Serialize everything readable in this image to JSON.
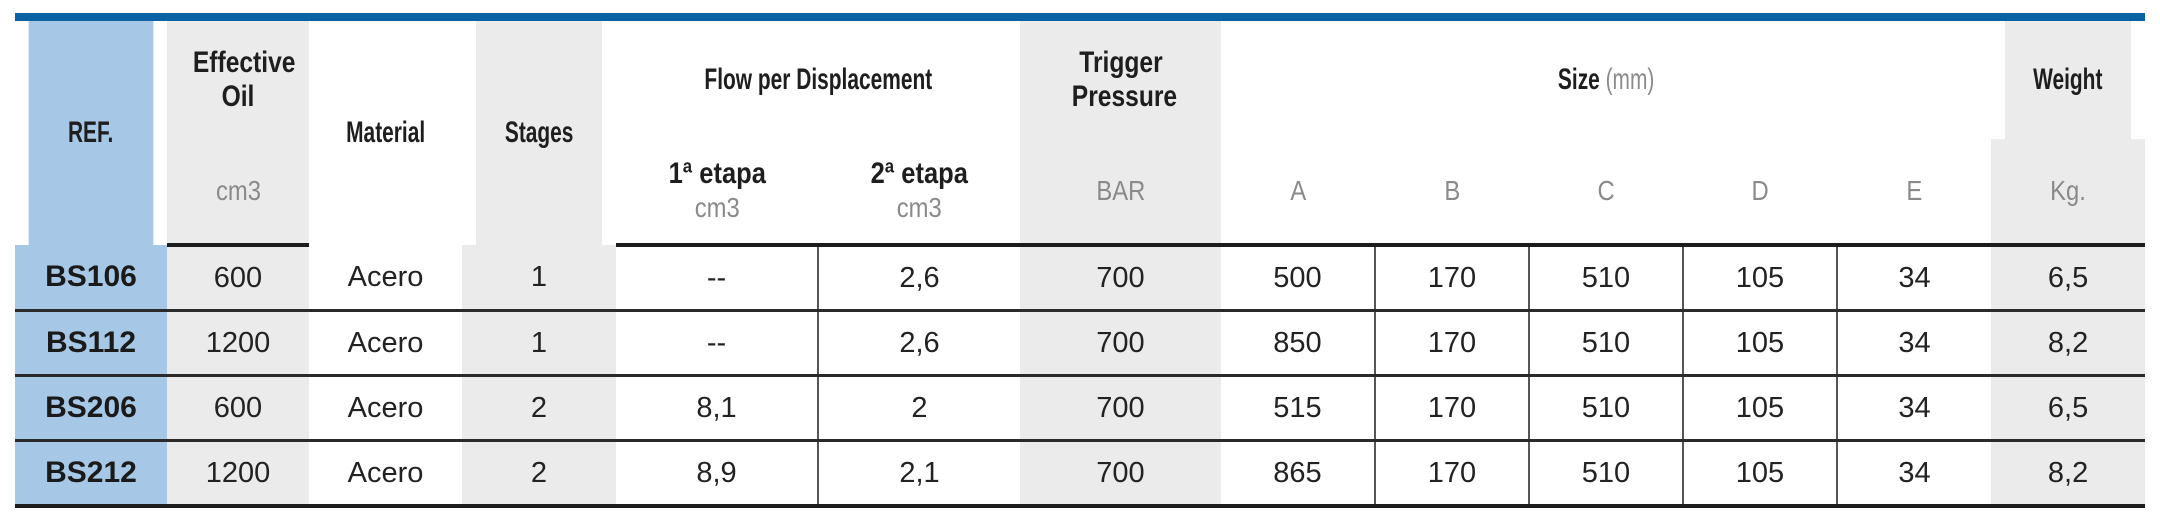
{
  "headers": {
    "ref": "REF.",
    "effective_oil": "Effective Oil",
    "material": "Material",
    "stages": "Stages",
    "flow": "Flow per Displacement",
    "trigger": "Trigger Pressure",
    "size": "Size",
    "size_unit": "(mm)",
    "weight": "Weight"
  },
  "subheaders": {
    "oil_unit": "cm3",
    "stage1": "1ª etapa",
    "stage1_unit": "cm3",
    "stage2": "2ª etapa",
    "stage2_unit": "cm3",
    "trigger_unit": "BAR",
    "a": "A",
    "b": "B",
    "c": "C",
    "d": "D",
    "e": "E",
    "weight_unit": "Kg."
  },
  "rows": [
    {
      "ref": "BS106",
      "oil": "600",
      "material": "Acero",
      "stages": "1",
      "flow1": "--",
      "flow2": "2,6",
      "trigger": "700",
      "a": "500",
      "b": "170",
      "c": "510",
      "d": "105",
      "e": "34",
      "weight": "6,5"
    },
    {
      "ref": "BS112",
      "oil": "1200",
      "material": "Acero",
      "stages": "1",
      "flow1": "--",
      "flow2": "2,6",
      "trigger": "700",
      "a": "850",
      "b": "170",
      "c": "510",
      "d": "105",
      "e": "34",
      "weight": "8,2"
    },
    {
      "ref": "BS206",
      "oil": "600",
      "material": "Acero",
      "stages": "2",
      "flow1": "8,1",
      "flow2": "2",
      "trigger": "700",
      "a": "515",
      "b": "170",
      "c": "510",
      "d": "105",
      "e": "34",
      "weight": "6,5"
    },
    {
      "ref": "BS212",
      "oil": "1200",
      "material": "Acero",
      "stages": "2",
      "flow1": "8,9",
      "flow2": "2,1",
      "trigger": "700",
      "a": "865",
      "b": "170",
      "c": "510",
      "d": "105",
      "e": "34",
      "weight": "8,2"
    }
  ],
  "colors": {
    "accent_bar": "#0a62a4",
    "ref_column": "#a6c8e6",
    "grey_column": "#ebebec"
  }
}
